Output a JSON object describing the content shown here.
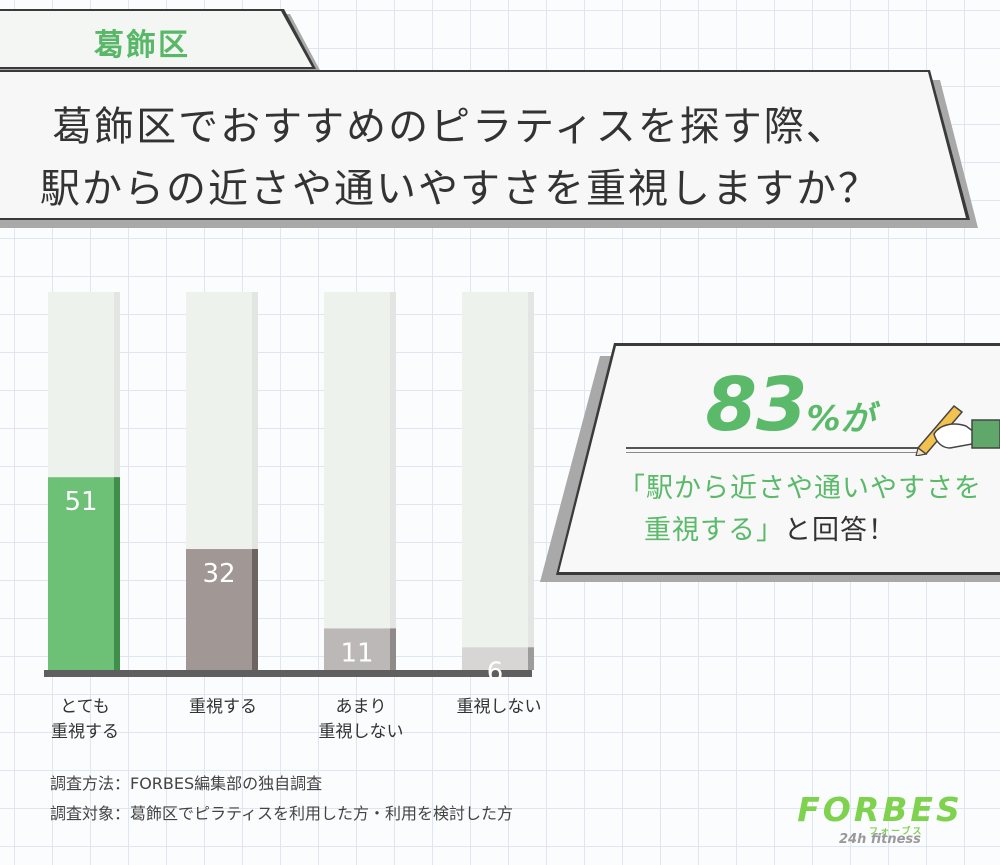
{
  "ward_tab": {
    "label": "葛飾区"
  },
  "title": {
    "line1": "葛飾区でおすすめのピラティスを探す際、",
    "line2": "駅からの近さや通いやすさを重視しますか？"
  },
  "chart_data": {
    "type": "bar",
    "categories": [
      "とても\n重視する",
      "重視する",
      "あまり\n重視しない",
      "重視しない"
    ],
    "values": [
      51,
      32,
      11,
      6
    ],
    "ylim": [
      0,
      100
    ],
    "title": "",
    "xlabel": "",
    "ylabel": "",
    "grid": false,
    "colors": [
      "#6dc176",
      "#a19895",
      "#bcb8b7",
      "#d8d6d5"
    ],
    "shadow_colors": [
      "#3f8f4b",
      "#6d6462",
      "#8e8b8a",
      "#9e9c9b"
    ]
  },
  "callout": {
    "percent": "83",
    "percent_suffix": "%が",
    "line1": "「駅から近さや通いやすさを",
    "line2_green": "重視する」",
    "line2_dark": "と回答！"
  },
  "notes": {
    "method": "調査方法：FORBES編集部の独自調査",
    "target": "調査対象：葛飾区でピラティスを利用した方・利用を検討した方"
  },
  "logo": {
    "main": "FORBES",
    "sub": "フォーブス",
    "tag": "24h fitness"
  },
  "colors": {
    "accent": "#5aba6a",
    "dark": "#3a3a3a",
    "track": "#eef2ed"
  }
}
